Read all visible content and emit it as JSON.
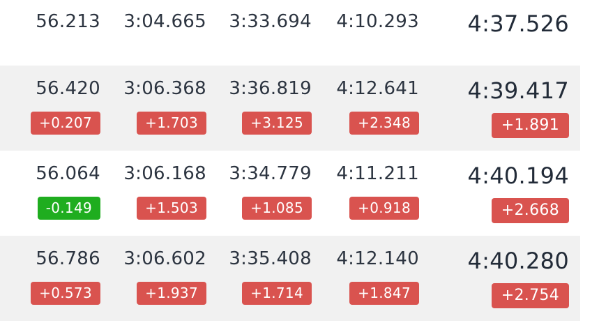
{
  "rows": [
    {
      "cells": [
        {
          "value": "56.213"
        },
        {
          "value": "3:04.665"
        },
        {
          "value": "3:33.694"
        },
        {
          "value": "4:10.293"
        }
      ],
      "total": {
        "value": "4:37.526"
      }
    },
    {
      "cells": [
        {
          "value": "56.420",
          "delta": "+0.207",
          "status": "slower"
        },
        {
          "value": "3:06.368",
          "delta": "+1.703",
          "status": "slower"
        },
        {
          "value": "3:36.819",
          "delta": "+3.125",
          "status": "slower"
        },
        {
          "value": "4:12.641",
          "delta": "+2.348",
          "status": "slower"
        }
      ],
      "total": {
        "value": "4:39.417",
        "delta": "+1.891",
        "status": "slower"
      }
    },
    {
      "cells": [
        {
          "value": "56.064",
          "delta": "-0.149",
          "status": "faster"
        },
        {
          "value": "3:06.168",
          "delta": "+1.503",
          "status": "slower"
        },
        {
          "value": "3:34.779",
          "delta": "+1.085",
          "status": "slower"
        },
        {
          "value": "4:11.211",
          "delta": "+0.918",
          "status": "slower"
        }
      ],
      "total": {
        "value": "4:40.194",
        "delta": "+2.668",
        "status": "slower"
      }
    },
    {
      "cells": [
        {
          "value": "56.786",
          "delta": "+0.573",
          "status": "slower"
        },
        {
          "value": "3:06.602",
          "delta": "+1.937",
          "status": "slower"
        },
        {
          "value": "3:35.408",
          "delta": "+1.714",
          "status": "slower"
        },
        {
          "value": "4:12.140",
          "delta": "+1.847",
          "status": "slower"
        }
      ],
      "total": {
        "value": "4:40.280",
        "delta": "+2.754",
        "status": "slower"
      }
    }
  ],
  "colors": {
    "slower": "#d9534f",
    "faster": "#1fad1f",
    "alt_row": "#f1f1f1",
    "text": "#2c3440"
  }
}
